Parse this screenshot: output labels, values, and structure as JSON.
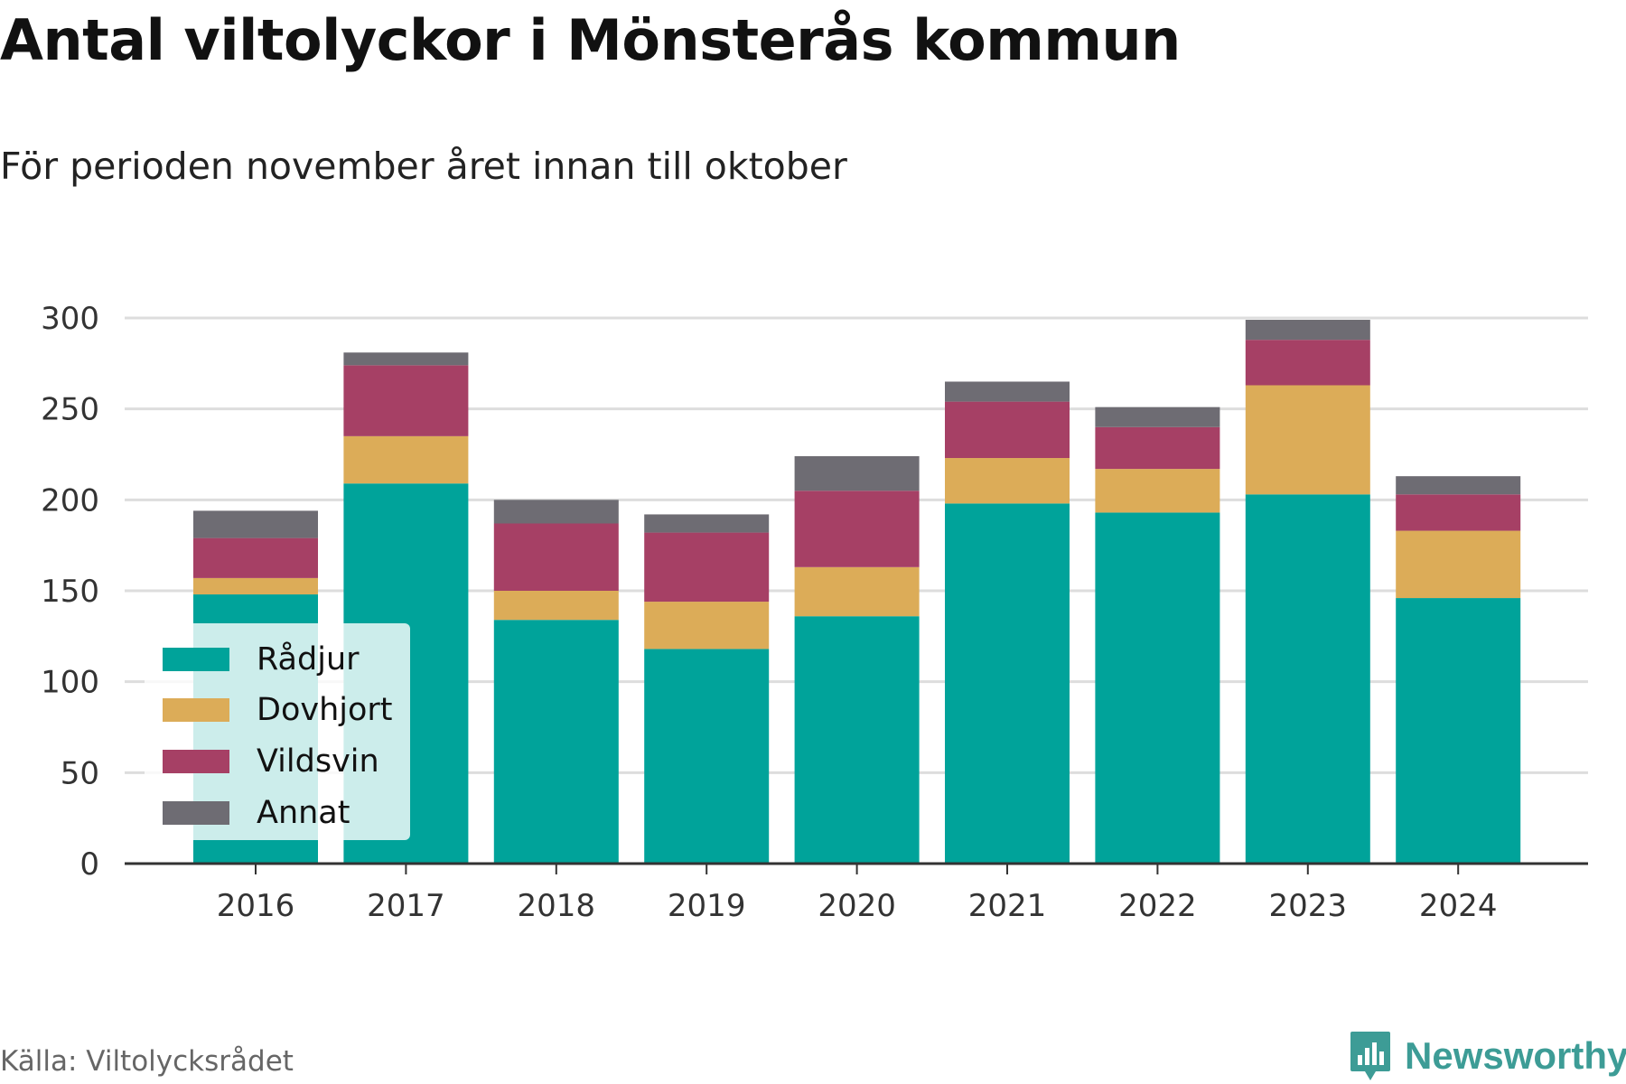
{
  "header": {
    "title": "Antal viltolyckor i Mönsterås kommun",
    "subtitle": "För perioden november året innan till oktober"
  },
  "footer": {
    "source": "Källa: Viltolycksrådet",
    "brand": "Newsworthy",
    "brand_color": "#3d9c96"
  },
  "chart_data": {
    "type": "bar",
    "stacked": true,
    "categories": [
      "2016",
      "2017",
      "2018",
      "2019",
      "2020",
      "2021",
      "2022",
      "2023",
      "2024"
    ],
    "series": [
      {
        "name": "Rådjur",
        "color": "#00a39a",
        "values": [
          148,
          209,
          134,
          118,
          136,
          198,
          193,
          203,
          146
        ]
      },
      {
        "name": "Dovhjort",
        "color": "#dcac58",
        "values": [
          9,
          26,
          16,
          26,
          27,
          25,
          24,
          60,
          37
        ]
      },
      {
        "name": "Vildsvin",
        "color": "#a64065",
        "values": [
          22,
          39,
          37,
          38,
          42,
          31,
          23,
          25,
          20
        ]
      },
      {
        "name": "Annat",
        "color": "#6e6c73",
        "values": [
          15,
          7,
          13,
          10,
          19,
          11,
          11,
          11,
          10
        ]
      }
    ],
    "ylim": [
      0,
      300
    ],
    "yticks": [
      0,
      50,
      100,
      150,
      200,
      250,
      300
    ],
    "xlabel": "",
    "ylabel": "",
    "grid": true,
    "legend_position": "bottom-left"
  }
}
